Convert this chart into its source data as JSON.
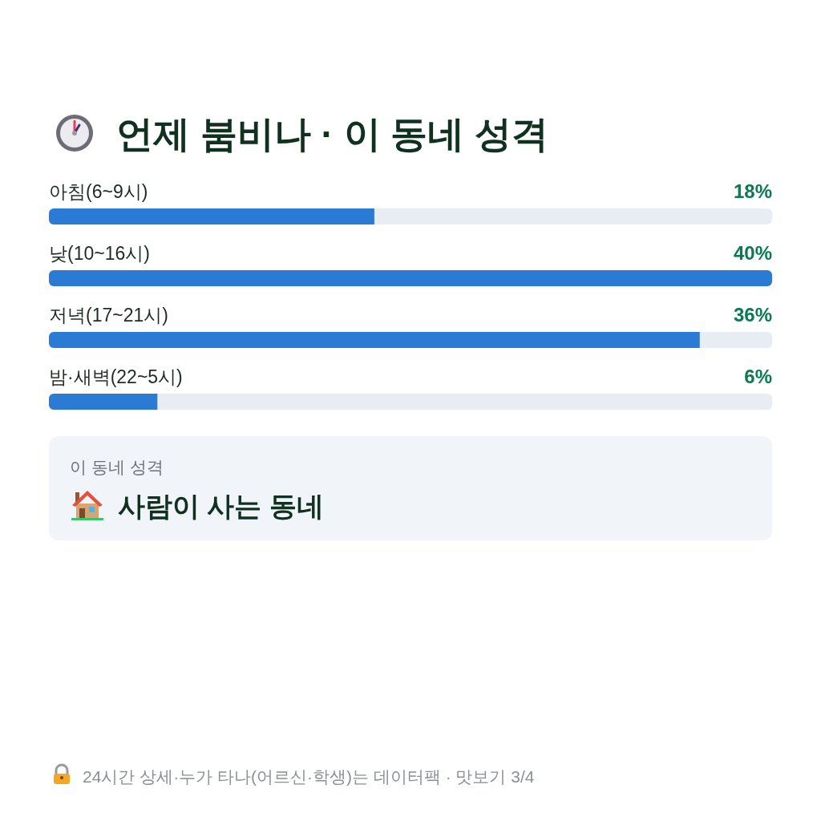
{
  "chart_data": {
    "type": "bar",
    "orientation": "horizontal",
    "title": "언제 붐비나 · 이 동네 성격",
    "categories": [
      "아침(6~9시)",
      "낮(10~16시)",
      "저녁(17~21시)",
      "밤·새벽(22~5시)"
    ],
    "values": [
      18,
      40,
      36,
      6
    ],
    "color": "#2b7bd4",
    "value_labels": [
      "18%",
      "40%",
      "36%",
      "6%"
    ],
    "annotations": [
      "이 동네 성격",
      "사람이 사는 동네",
      "24시간 상세·누가 타나(어르신·학생)는 데이터팩 · 맛보기 3/4"
    ]
  }
}
